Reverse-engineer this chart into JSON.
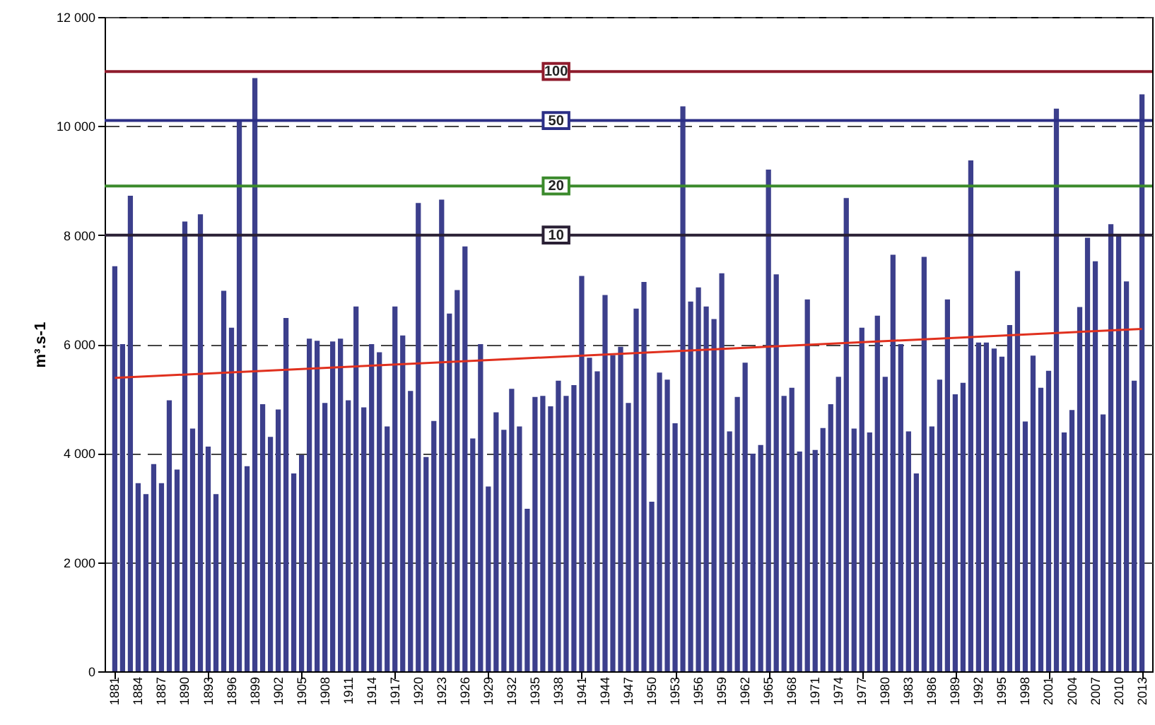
{
  "chart_data": {
    "type": "bar",
    "ylabel": "m³.s-1",
    "x": [
      1881,
      1882,
      1883,
      1884,
      1885,
      1886,
      1887,
      1888,
      1889,
      1890,
      1891,
      1892,
      1893,
      1894,
      1895,
      1896,
      1897,
      1898,
      1899,
      1900,
      1901,
      1902,
      1903,
      1904,
      1905,
      1906,
      1907,
      1908,
      1909,
      1910,
      1911,
      1912,
      1913,
      1914,
      1915,
      1916,
      1917,
      1918,
      1919,
      1920,
      1921,
      1922,
      1923,
      1924,
      1925,
      1926,
      1927,
      1928,
      1929,
      1930,
      1931,
      1932,
      1933,
      1934,
      1935,
      1936,
      1937,
      1938,
      1939,
      1940,
      1941,
      1942,
      1943,
      1944,
      1945,
      1946,
      1947,
      1948,
      1949,
      1950,
      1951,
      1952,
      1953,
      1954,
      1955,
      1956,
      1957,
      1958,
      1959,
      1960,
      1961,
      1962,
      1963,
      1964,
      1965,
      1966,
      1967,
      1968,
      1969,
      1970,
      1971,
      1972,
      1973,
      1974,
      1975,
      1976,
      1977,
      1978,
      1979,
      1980,
      1981,
      1982,
      1983,
      1984,
      1985,
      1986,
      1987,
      1988,
      1989,
      1990,
      1991,
      1992,
      1993,
      1994,
      1995,
      1996,
      1997,
      1998,
      1999,
      2000,
      2001,
      2002,
      2003,
      2004,
      2005,
      2006,
      2007,
      2008,
      2009,
      2010,
      2011,
      2012,
      2013
    ],
    "xlim": [
      1880.6,
      2013.4
    ],
    "xticks": [
      1881,
      1884,
      1887,
      1890,
      1893,
      1896,
      1899,
      1902,
      1905,
      1908,
      1911,
      1914,
      1917,
      1920,
      1923,
      1926,
      1929,
      1932,
      1935,
      1938,
      1941,
      1944,
      1947,
      1950,
      1953,
      1956,
      1959,
      1962,
      1965,
      1968,
      1971,
      1974,
      1977,
      1980,
      1983,
      1986,
      1989,
      1992,
      1995,
      1998,
      2001,
      2004,
      2007,
      2010,
      2013
    ],
    "series": [
      {
        "color": "#3c3f8c",
        "values": [
          7430,
          6000,
          8720,
          3450,
          3250,
          3800,
          3450,
          4970,
          3700,
          8250,
          4450,
          8380,
          4120,
          3250,
          6980,
          6300,
          10100,
          3760,
          10880,
          4900,
          4300,
          4800,
          6480,
          3630,
          3970,
          6100,
          6060,
          4920,
          6050,
          6100,
          4970,
          6690,
          4840,
          6000,
          5850,
          4490,
          6690,
          6160,
          5140,
          8590,
          3930,
          4590,
          8650,
          6560,
          6990,
          7790,
          4270,
          6000,
          3390,
          4750,
          4430,
          5180,
          4490,
          2980,
          5030,
          5050,
          4860,
          5330,
          5050,
          5250,
          7250,
          5750,
          5500,
          6900,
          5800,
          5950,
          4920,
          6650,
          7140,
          3110,
          5480,
          5350,
          4550,
          10360,
          6780,
          7040,
          6690,
          6460,
          7300,
          4400,
          5030,
          5660,
          3990,
          4150,
          9200,
          7280,
          5050,
          5200,
          4030,
          6820,
          4060,
          4460,
          4900,
          5400,
          8680,
          4450,
          6300,
          4380,
          6520,
          5400,
          7640,
          6000,
          4400,
          3630,
          7600,
          4490,
          5350,
          6820,
          5080,
          5290,
          9370,
          6030,
          6030,
          5920,
          5770,
          6350,
          7340,
          4580,
          5790,
          5200,
          5510,
          10320,
          4380,
          4790,
          6680,
          7950,
          7520,
          4710,
          8200,
          7990,
          7150,
          5330,
          10580
        ]
      },
      {
        "type": "line",
        "color": "#e0301e",
        "x": [
          1881,
          2013
        ],
        "values": [
          5380,
          6280
        ]
      }
    ],
    "ylim": [
      0,
      12000
    ],
    "yticks": [
      0,
      {
        "value": 2000,
        "label": "2 000"
      },
      {
        "value": 4000,
        "label": "4 000"
      },
      {
        "value": 6000,
        "label": "6 000"
      },
      {
        "value": 8000,
        "label": "8 000"
      },
      {
        "value": 10000,
        "label": "10 000"
      },
      {
        "value": 12000,
        "label": "12 000"
      }
    ],
    "grid": "y",
    "ref_lines": [
      {
        "axis": "y",
        "value": 11000,
        "color": "#8e1b2c"
      },
      {
        "axis": "y",
        "value": 10100,
        "color": "#2c2f86"
      },
      {
        "axis": "y",
        "value": 8900,
        "color": "#3b8a2c"
      },
      {
        "axis": "y",
        "value": 8000,
        "color": "#2a2035"
      }
    ],
    "annotations": [
      "100",
      "50",
      "20",
      "10"
    ]
  }
}
